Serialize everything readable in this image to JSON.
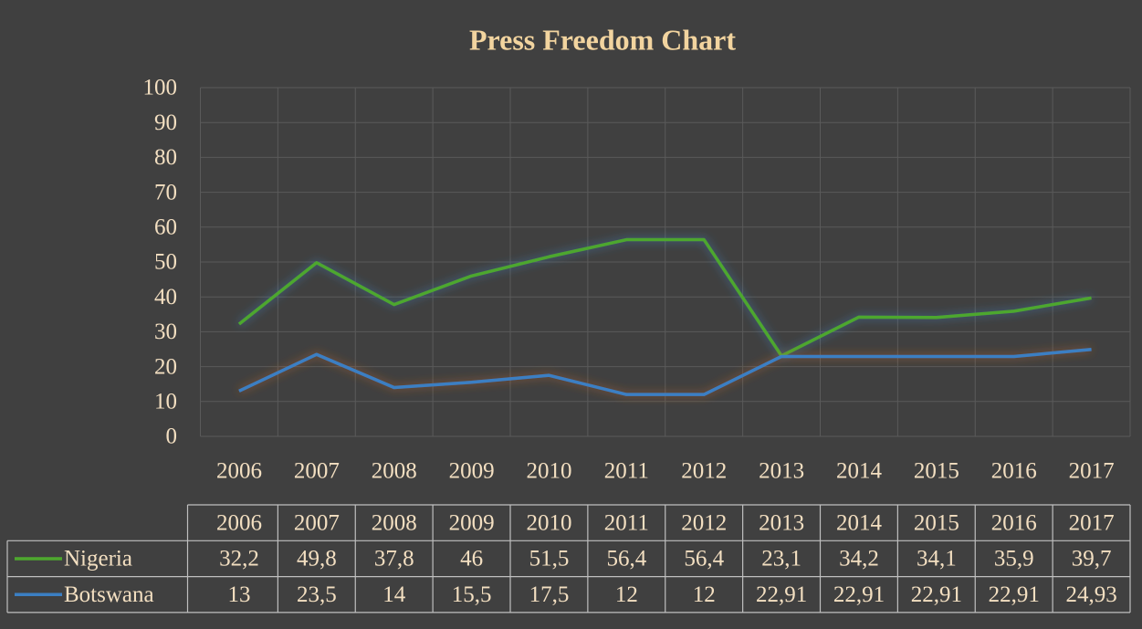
{
  "chart_data": {
    "type": "line",
    "title": "Press Freedom Chart",
    "categories": [
      "2006",
      "2007",
      "2008",
      "2009",
      "2010",
      "2011",
      "2012",
      "2013",
      "2014",
      "2015",
      "2016",
      "2017"
    ],
    "series": [
      {
        "name": "Nigeria",
        "color": "#4ea72e",
        "glow": "#3f86c8",
        "values": [
          32.2,
          49.8,
          37.8,
          46,
          51.5,
          56.4,
          56.4,
          23.1,
          34.2,
          34.1,
          35.9,
          39.7
        ],
        "value_labels": [
          "32,2",
          "49,8",
          "37,8",
          "46",
          "51,5",
          "56,4",
          "56,4",
          "23,1",
          "34,2",
          "34,1",
          "35,9",
          "39,7"
        ]
      },
      {
        "name": "Botswana",
        "color": "#3b7fc3",
        "glow": "#c2682a",
        "values": [
          13,
          23.5,
          14,
          15.5,
          17.5,
          12,
          12,
          22.91,
          22.91,
          22.91,
          22.91,
          24.93
        ],
        "value_labels": [
          "13",
          "23,5",
          "14",
          "15,5",
          "17,5",
          "12",
          "12",
          "22,91",
          "22,91",
          "22,91",
          "22,91",
          "24,93"
        ]
      }
    ],
    "ylim": [
      0,
      100
    ],
    "yticks": [
      0,
      10,
      20,
      30,
      40,
      50,
      60,
      70,
      80,
      90,
      100
    ],
    "grid": true,
    "data_table": true
  }
}
